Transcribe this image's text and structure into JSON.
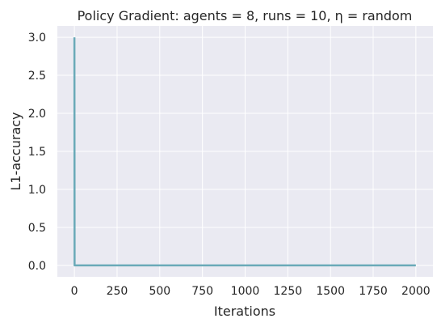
{
  "colors": {
    "plot_background": "#eaeaf2",
    "grid": "#ffffff",
    "line": "#6aaab8"
  },
  "chart_data": {
    "type": "line",
    "title": "Policy Gradient: agents = 8, runs = 10, η = random",
    "xlabel": "Iterations",
    "ylabel": "L1-accuracy",
    "xlim": [
      -100,
      2100
    ],
    "ylim": [
      -0.15,
      3.15
    ],
    "xticks": [
      0,
      250,
      500,
      750,
      1000,
      1250,
      1500,
      1750,
      2000
    ],
    "yticks": [
      0.0,
      0.5,
      1.0,
      1.5,
      2.0,
      2.5,
      3.0
    ],
    "xtick_labels": [
      "0",
      "250",
      "500",
      "750",
      "1000",
      "1250",
      "1500",
      "1750",
      "2000"
    ],
    "ytick_labels": [
      "0.0",
      "0.5",
      "1.0",
      "1.5",
      "2.0",
      "2.5",
      "3.0"
    ],
    "grid": true,
    "series": [
      {
        "x": [
          0,
          1,
          2,
          5,
          10,
          50,
          100,
          500,
          1000,
          1500,
          2000
        ],
        "y": [
          3.0,
          0.0,
          0.0,
          0.0,
          0.0,
          0.0,
          0.0,
          0.0,
          0.0,
          0.0,
          0.0
        ]
      }
    ]
  }
}
